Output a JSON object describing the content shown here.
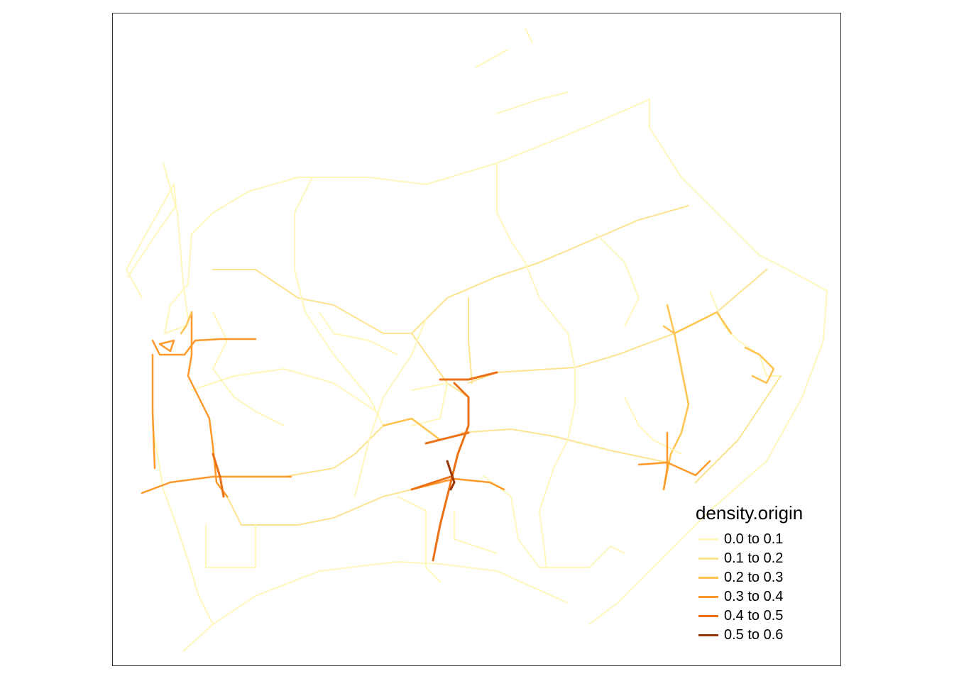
{
  "legend": {
    "title": "density.origin",
    "items": [
      {
        "label": "0.0 to 0.1",
        "color": "#FFF7BC"
      },
      {
        "label": "0.1 to 0.2",
        "color": "#FEE391"
      },
      {
        "label": "0.2 to 0.3",
        "color": "#FEC44F"
      },
      {
        "label": "0.3 to 0.4",
        "color": "#FE9929"
      },
      {
        "label": "0.4 to 0.5",
        "color": "#EC7014"
      },
      {
        "label": "0.5 to 0.6",
        "color": "#993404"
      }
    ]
  }
}
